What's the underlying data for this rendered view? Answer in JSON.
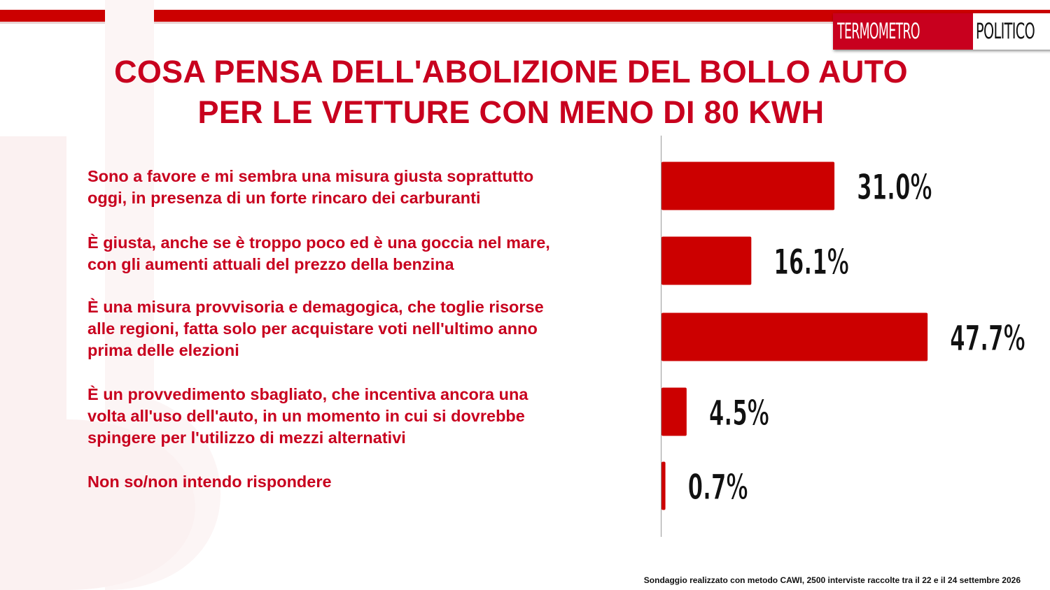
{
  "brand": {
    "logo_left": "TERMOMETRO",
    "logo_right": "POLITICO",
    "accent": "#cc0000"
  },
  "title": {
    "line1": "COSA PENSA DELL'ABOLIZIONE DEL BOLLO AUTO",
    "line2": "PER LE VETTURE CON MENO DI 80 KWH"
  },
  "chart_data": {
    "type": "bar",
    "orientation": "horizontal",
    "categories": [
      "Sono a favore e mi sembra una misura giusta soprattutto oggi, in presenza di un forte rincaro dei carburanti",
      "È giusta, anche se è troppo poco ed è una goccia nel mare, con gli aumenti attuali del prezzo della benzina",
      "È una misura provvisoria e demagogica, che toglie risorse alle regioni, fatta solo per acquistare voti nell'ultimo anno prima delle elezioni",
      "È un provvedimento sbagliato, che incentiva ancora una volta all'uso dell'auto, in un momento in cui si dovrebbe spingere per l'utilizzo di mezzi alternativi",
      "Non so/non intendo rispondere"
    ],
    "values": [
      31.0,
      16.1,
      47.7,
      4.5,
      0.7
    ],
    "labels": [
      "31.0%",
      "16.1%",
      "47.7%",
      "4.5%",
      "0.7%"
    ],
    "xlim": [
      0,
      50
    ],
    "bar_color": "#cc0000",
    "grid": false,
    "legend": "none"
  },
  "answers": {
    "a1": [
      "Sono a favore e mi sembra una misura giusta soprattutto",
      "oggi, in presenza di un forte rincaro dei carburanti"
    ],
    "a2": [
      "È giusta, anche se è troppo poco ed è una goccia nel mare,",
      "con gli aumenti attuali del prezzo della benzina"
    ],
    "a3": [
      "È una misura provvisoria e demagogica, che toglie risorse",
      "alle regioni, fatta solo per acquistare voti nell'ultimo anno",
      "prima delle elezioni"
    ],
    "a4": [
      "È un provvedimento sbagliato, che incentiva ancora una",
      "volta all'uso dell'auto, in un momento in cui si dovrebbe",
      "spingere per l'utilizzo di mezzi alternativi"
    ],
    "a5": [
      "Non so/non intendo rispondere"
    ]
  },
  "footnote": "Sondaggio realizzato con metodo CAWI, 2500 interviste raccolte tra il 22 e il 24  settembre  2026"
}
